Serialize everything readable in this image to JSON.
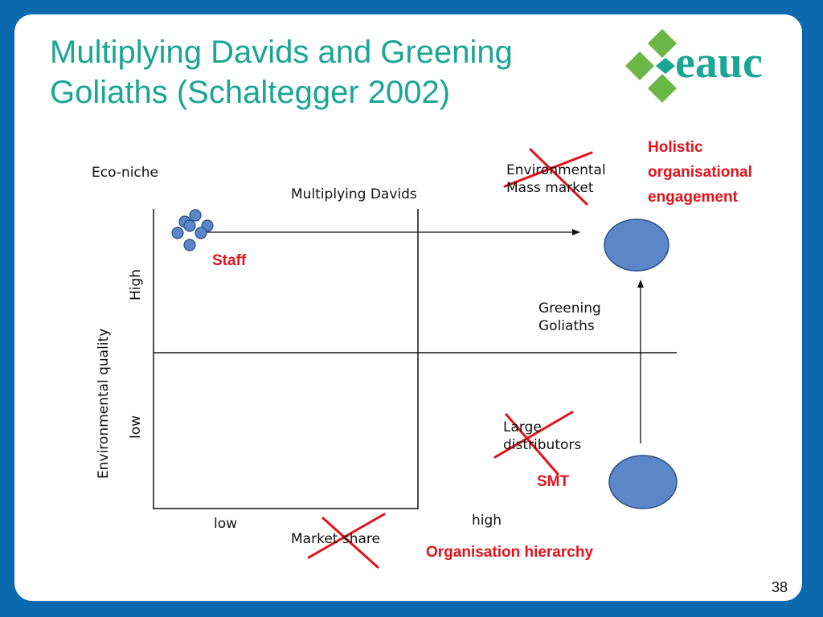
{
  "slide": {
    "title_line1": "Multiplying Davids and Greening",
    "title_line2": "Goliaths (Schaltegger 2002)",
    "page_number": "38"
  },
  "logo": {
    "text": "eauc",
    "brand_color": "#1aa595",
    "leaf_color": "#6ab746"
  },
  "diagram": {
    "eco_niche": "Eco-niche",
    "multiplying_davids": "Multiplying Davids",
    "environmental_mass_market_line1": "Environmental",
    "environmental_mass_market_line2": "Mass market",
    "greening_goliaths_line1": "Greening",
    "greening_goliaths_line2": "Goliaths",
    "large_distributors_line1": "Large",
    "large_distributors_line2": "distributors",
    "y_axis_label": "Environmental quality",
    "y_high": "High",
    "y_low": "low",
    "x_low": "low",
    "x_high": "high",
    "x_axis_label": "Market share"
  },
  "annotations": {
    "holistic_line1": "Holistic",
    "holistic_line2": "organisational",
    "holistic_line3": "engagement",
    "staff": "Staff",
    "smt": "SMT",
    "organisation_hierarchy": "Organisation hierarchy",
    "color": "#e3121a"
  },
  "colors": {
    "background": "#0a6aad",
    "title": "#1aa595",
    "circle_fill": "#5b86c8",
    "circle_stroke": "#2d4f86"
  }
}
